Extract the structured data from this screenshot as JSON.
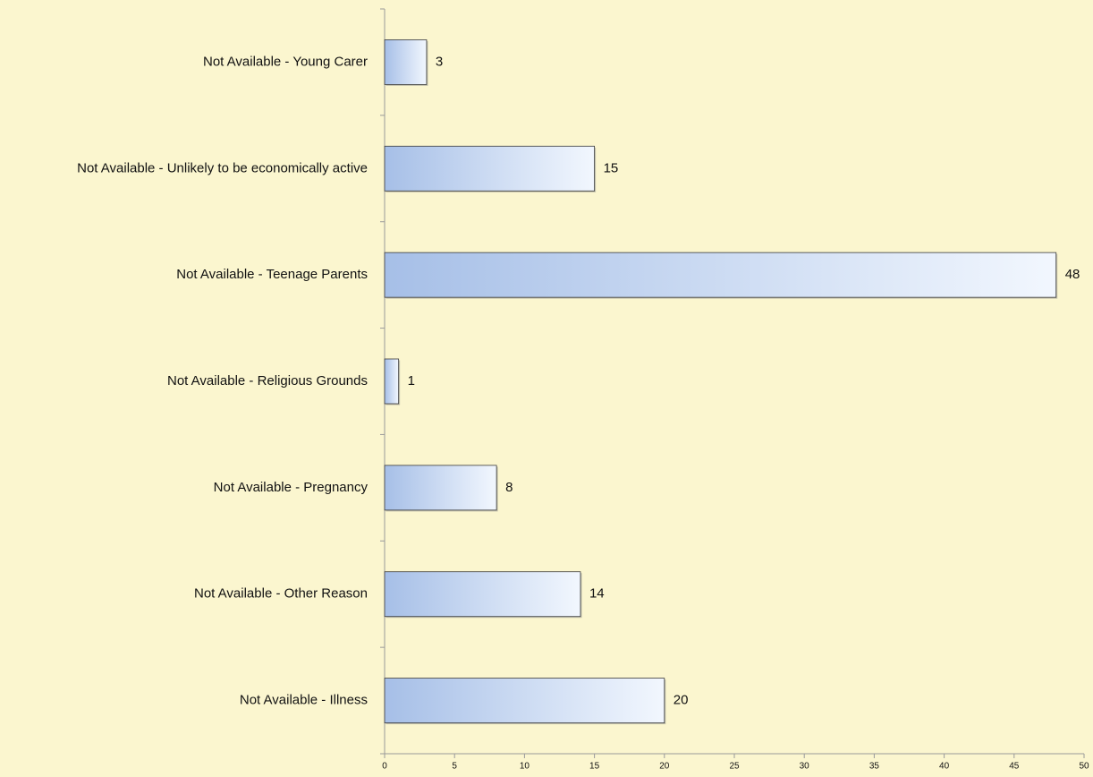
{
  "chart_data": {
    "type": "bar",
    "orientation": "horizontal",
    "categories": [
      "Not Available - Young Carer",
      "Not Available - Unlikely to be economically active",
      "Not Available - Teenage Parents",
      "Not Available - Religious Grounds",
      "Not Available - Pregnancy",
      "Not Available - Other Reason",
      "Not Available - Illness"
    ],
    "values": [
      3,
      15,
      48,
      1,
      8,
      14,
      20
    ],
    "color": "#a6bfe7",
    "xlim": [
      0,
      50
    ],
    "xticks": [
      0,
      5,
      10,
      15,
      20,
      25,
      30,
      35,
      40,
      45,
      50
    ],
    "grid": false
  }
}
